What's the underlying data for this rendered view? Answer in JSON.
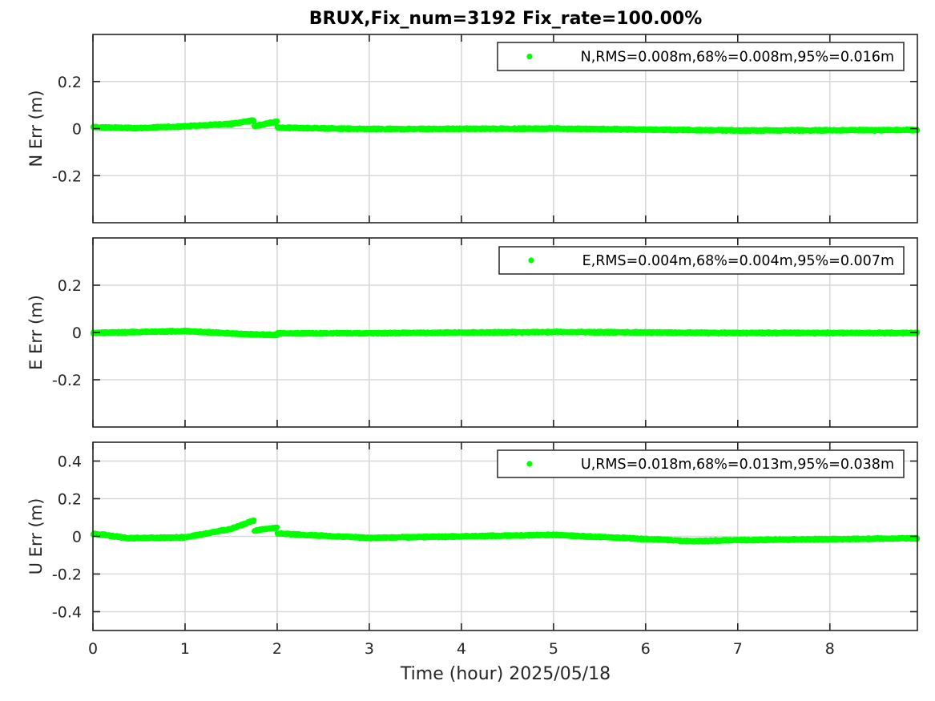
{
  "chart_data": {
    "type": "scatter",
    "title": "BRUX,Fix_num=3192 Fix_rate=100.00%",
    "xlabel": "Time (hour)  2025/05/18",
    "xlim": [
      0,
      8.95
    ],
    "xticks": [
      0,
      1,
      2,
      3,
      4,
      5,
      6,
      7,
      8
    ],
    "xtick_labels": [
      "0",
      "1",
      "2",
      "3",
      "4",
      "5",
      "6",
      "7",
      "8"
    ],
    "marker_color": "#00ff00",
    "grid": true,
    "legend_location": "top-right",
    "panels": [
      {
        "id": "N",
        "ylabel": "N Err (m)",
        "ylim": [
          -0.4,
          0.4
        ],
        "yticks": [
          -0.2,
          0,
          0.2
        ],
        "ytick_labels": [
          "-0.2",
          "0",
          "0.2"
        ],
        "legend": "N,RMS=0.008m,68%=0.008m,95%=0.016m",
        "series": [
          {
            "t0": 0.0,
            "t1": 0.5,
            "v0": 0.006,
            "v1": 0.002
          },
          {
            "t0": 0.5,
            "t1": 1.0,
            "v0": 0.002,
            "v1": 0.01
          },
          {
            "t0": 1.0,
            "t1": 1.5,
            "v0": 0.01,
            "v1": 0.02
          },
          {
            "t0": 1.5,
            "t1": 1.75,
            "v0": 0.02,
            "v1": 0.035
          },
          {
            "t0": 1.75,
            "t1": 2.0,
            "v0": 0.01,
            "v1": 0.03
          },
          {
            "t0": 2.0,
            "t1": 3.0,
            "v0": 0.004,
            "v1": -0.002
          },
          {
            "t0": 3.0,
            "t1": 5.0,
            "v0": -0.002,
            "v1": 0.0
          },
          {
            "t0": 5.0,
            "t1": 7.0,
            "v0": 0.0,
            "v1": -0.008
          },
          {
            "t0": 7.0,
            "t1": 8.95,
            "v0": -0.008,
            "v1": -0.006
          }
        ]
      },
      {
        "id": "E",
        "ylabel": "E Err (m)",
        "ylim": [
          -0.4,
          0.4
        ],
        "yticks": [
          -0.2,
          0,
          0.2
        ],
        "ytick_labels": [
          "-0.2",
          "0",
          "0.2"
        ],
        "legend": "E,RMS=0.004m,68%=0.004m,95%=0.007m",
        "series": [
          {
            "t0": 0.0,
            "t1": 1.0,
            "v0": -0.002,
            "v1": 0.006
          },
          {
            "t0": 1.0,
            "t1": 1.7,
            "v0": 0.006,
            "v1": -0.008
          },
          {
            "t0": 1.7,
            "t1": 2.0,
            "v0": -0.008,
            "v1": -0.01
          },
          {
            "t0": 2.0,
            "t1": 3.0,
            "v0": -0.004,
            "v1": -0.003
          },
          {
            "t0": 3.0,
            "t1": 5.0,
            "v0": -0.003,
            "v1": 0.002
          },
          {
            "t0": 5.0,
            "t1": 7.0,
            "v0": 0.002,
            "v1": -0.002
          },
          {
            "t0": 7.0,
            "t1": 8.95,
            "v0": -0.002,
            "v1": -0.002
          }
        ]
      },
      {
        "id": "U",
        "ylabel": "U Err (m)",
        "ylim": [
          -0.5,
          0.5
        ],
        "yticks": [
          -0.4,
          -0.2,
          0,
          0.2,
          0.4
        ],
        "ytick_labels": [
          "-0.4",
          "-0.2",
          "0",
          "0.2",
          "0.4"
        ],
        "legend": "U,RMS=0.018m,68%=0.013m,95%=0.038m",
        "series": [
          {
            "t0": 0.0,
            "t1": 0.4,
            "v0": 0.015,
            "v1": -0.01
          },
          {
            "t0": 0.4,
            "t1": 1.0,
            "v0": -0.01,
            "v1": -0.005
          },
          {
            "t0": 1.0,
            "t1": 1.5,
            "v0": -0.005,
            "v1": 0.04
          },
          {
            "t0": 1.5,
            "t1": 1.75,
            "v0": 0.04,
            "v1": 0.085
          },
          {
            "t0": 1.75,
            "t1": 2.0,
            "v0": 0.03,
            "v1": 0.048
          },
          {
            "t0": 2.0,
            "t1": 3.0,
            "v0": 0.015,
            "v1": -0.008
          },
          {
            "t0": 3.0,
            "t1": 5.0,
            "v0": -0.008,
            "v1": 0.008
          },
          {
            "t0": 5.0,
            "t1": 6.5,
            "v0": 0.008,
            "v1": -0.025
          },
          {
            "t0": 6.5,
            "t1": 7.0,
            "v0": -0.025,
            "v1": -0.02
          },
          {
            "t0": 7.0,
            "t1": 8.95,
            "v0": -0.02,
            "v1": -0.01
          }
        ]
      }
    ]
  }
}
